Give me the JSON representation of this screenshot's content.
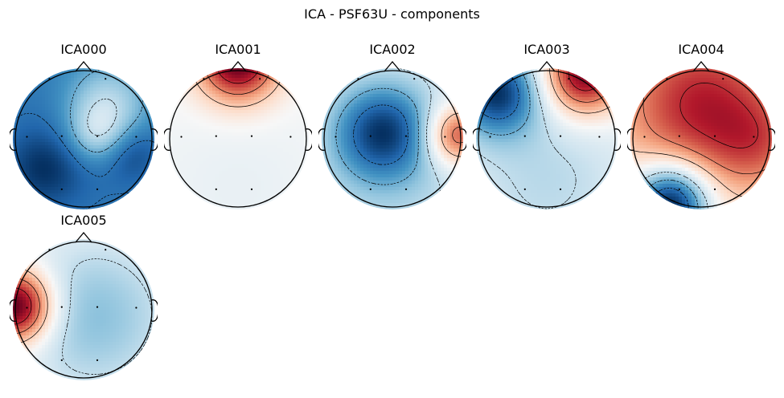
{
  "figure": {
    "title": "ICA - PSF63U - components"
  },
  "chart_data": {
    "type": "heatmap",
    "subtype": "eeg-topomap",
    "title": "ICA - PSF63U - components",
    "colormap": "RdBu_r",
    "colors": {
      "neg": "#053061",
      "mid": "#f7f7f7",
      "pos": "#67001f",
      "contour": "#000000",
      "head": "#000000"
    },
    "grid": false,
    "legend": "none",
    "sensors": [
      {
        "x": -0.83,
        "y": 0.03
      },
      {
        "x": -0.32,
        "y": 0.04
      },
      {
        "x": 0.2,
        "y": 0.04
      },
      {
        "x": 0.77,
        "y": 0.03
      },
      {
        "x": -0.32,
        "y": -0.74
      },
      {
        "x": 0.2,
        "y": -0.74
      },
      {
        "x": -0.5,
        "y": 0.88
      },
      {
        "x": 0.32,
        "y": 0.88
      }
    ],
    "components": [
      {
        "name": "ICA000",
        "sources": [
          {
            "x": 0.0,
            "y": 0.0,
            "a": -0.75,
            "s": 3.0
          },
          {
            "x": 0.35,
            "y": 0.5,
            "a": 0.45,
            "s": 0.45
          },
          {
            "x": 0.2,
            "y": 0.05,
            "a": 0.3,
            "s": 0.3
          },
          {
            "x": -0.6,
            "y": -0.45,
            "a": -0.25,
            "s": 0.4
          },
          {
            "x": 0.7,
            "y": -0.2,
            "a": -0.2,
            "s": 0.3
          }
        ]
      },
      {
        "name": "ICA001",
        "sources": [
          {
            "x": 0.0,
            "y": 1.15,
            "a": 1.1,
            "s": 0.42
          },
          {
            "x": 0.0,
            "y": -0.7,
            "a": -0.08,
            "s": 1.0
          }
        ]
      },
      {
        "name": "ICA002",
        "sources": [
          {
            "x": -0.15,
            "y": 0.1,
            "a": -1.0,
            "s": 0.5
          },
          {
            "x": 0.95,
            "y": 0.05,
            "a": 1.1,
            "s": 0.32
          },
          {
            "x": 0.0,
            "y": -0.4,
            "a": -0.4,
            "s": 1.2
          }
        ]
      },
      {
        "name": "ICA003",
        "sources": [
          {
            "x": -0.75,
            "y": 0.7,
            "a": -1.0,
            "s": 0.45
          },
          {
            "x": 0.55,
            "y": 0.95,
            "a": 1.1,
            "s": 0.42
          },
          {
            "x": 0.0,
            "y": -0.6,
            "a": -0.3,
            "s": 1.0
          }
        ]
      },
      {
        "name": "ICA004",
        "sources": [
          {
            "x": 0.0,
            "y": 0.5,
            "a": 1.0,
            "s": 0.9
          },
          {
            "x": 0.9,
            "y": -0.1,
            "a": 0.4,
            "s": 0.5
          },
          {
            "x": -0.45,
            "y": -0.95,
            "a": -1.5,
            "s": 0.4
          }
        ]
      },
      {
        "name": "ICA005",
        "sources": [
          {
            "x": -1.0,
            "y": 0.05,
            "a": 1.25,
            "s": 0.38
          },
          {
            "x": 0.15,
            "y": -0.1,
            "a": -0.45,
            "s": 0.85
          }
        ]
      }
    ]
  }
}
